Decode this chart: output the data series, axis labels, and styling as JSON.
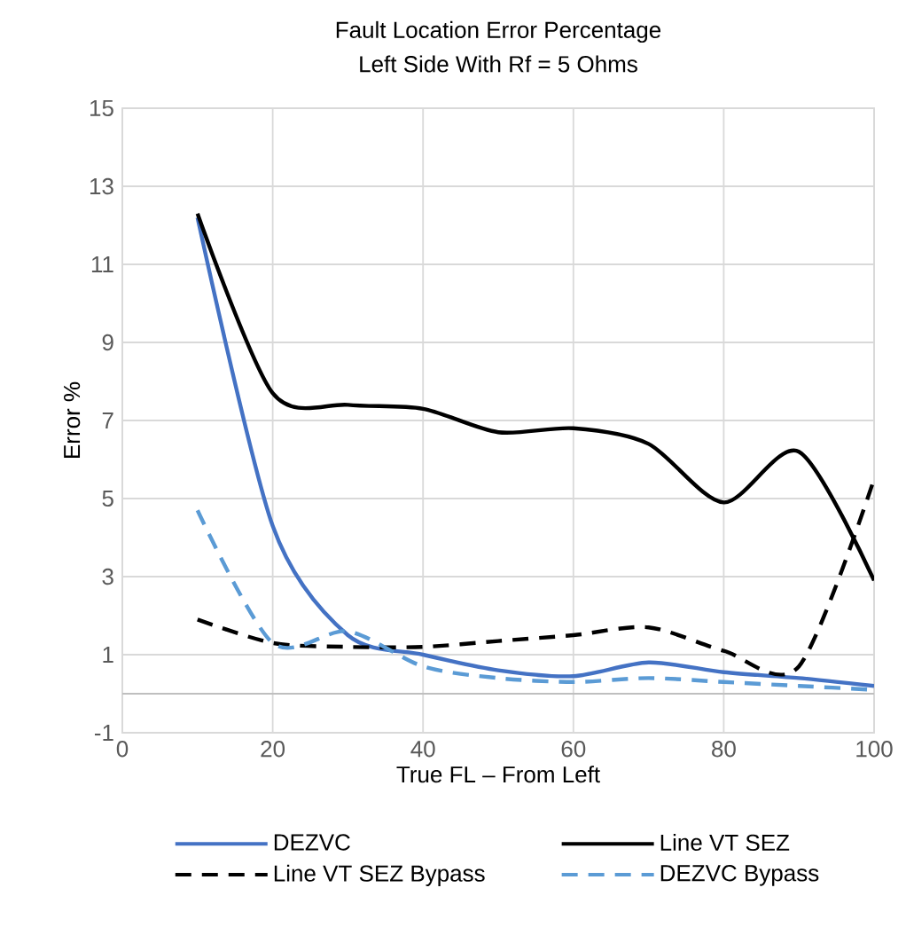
{
  "chart_data": {
    "type": "line",
    "title": "Fault Location Error Percentage",
    "subtitle": "Left Side With Rf = 5 Ohms",
    "xlabel": "True FL – From Left",
    "ylabel": "Error %",
    "x": [
      10,
      20,
      30,
      40,
      50,
      60,
      70,
      80,
      90,
      100
    ],
    "series": [
      {
        "name": "DEZVC",
        "color": "#4472c4",
        "line_style": "solid",
        "values": [
          12.2,
          4.3,
          1.5,
          1.0,
          0.6,
          0.45,
          0.8,
          0.55,
          0.4,
          0.2
        ]
      },
      {
        "name": "Line VT SEZ",
        "color": "#000000",
        "line_style": "solid",
        "values": [
          12.3,
          7.7,
          7.4,
          7.3,
          6.7,
          6.8,
          6.4,
          4.9,
          6.2,
          2.9
        ]
      },
      {
        "name": "Line VT SEZ Bypass",
        "color": "#000000",
        "line_style": "dashed",
        "values": [
          1.9,
          1.3,
          1.2,
          1.2,
          1.35,
          1.5,
          1.7,
          1.1,
          0.7,
          5.5
        ]
      },
      {
        "name": "DEZVC Bypass",
        "color": "#5b9bd5",
        "line_style": "dashed",
        "values": [
          4.7,
          1.3,
          1.6,
          0.7,
          0.4,
          0.3,
          0.4,
          0.3,
          0.2,
          0.1
        ]
      }
    ],
    "xlim": [
      0,
      100
    ],
    "xticks": [
      0,
      20,
      40,
      60,
      80,
      100
    ],
    "ylim": [
      -1,
      15
    ],
    "yticks": [
      -1,
      1,
      3,
      5,
      7,
      9,
      11,
      13,
      15
    ],
    "grid": true,
    "legend": "bottom",
    "marker": "none"
  }
}
